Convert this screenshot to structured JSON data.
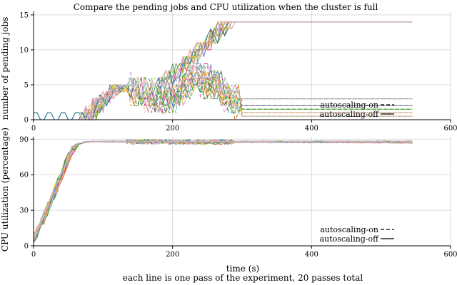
{
  "figure": {
    "title": "Compare the pending jobs and CPU utilization when the cluster is full",
    "xlabel": "time (s)",
    "caption": "each line is one pass of the experiment, 20 passes total"
  },
  "colors": {
    "palette": [
      "#1b9e77",
      "#d95f02",
      "#7570b3",
      "#e7298a",
      "#66a61e",
      "#e6ab02",
      "#a6761d",
      "#666666",
      "#66c2a5",
      "#fc8d62",
      "#8da0cb",
      "#e78ac3",
      "#a6d854",
      "#ffd92f",
      "#e5c494",
      "#b3b3b3",
      "#1f78b4",
      "#33a02c",
      "#fb9a99",
      "#cab2d6"
    ],
    "grid": "#d9d9d9",
    "axis": "#000000"
  },
  "chart_data": [
    {
      "type": "line",
      "ylabel": "number of pending jobs",
      "xlim": [
        0,
        600
      ],
      "ylim": [
        0,
        15.5
      ],
      "xticks": [
        0,
        200,
        400,
        600
      ],
      "yticks": [
        0,
        5,
        10,
        15
      ],
      "grid": true,
      "legend_position": "bottom-right",
      "legend": [
        {
          "label": "autoscaling-on",
          "style": "dashed"
        },
        {
          "label": "autoscaling-off",
          "style": "solid"
        }
      ],
      "autoscaling_off_profile": {
        "x": [
          0,
          75,
          100,
          130,
          185,
          240,
          280,
          300,
          545
        ],
        "y": [
          0,
          0,
          3,
          5,
          5,
          10,
          14,
          14,
          14
        ]
      },
      "autoscaling_on_profile": {
        "x": [
          0,
          75,
          100,
          130,
          150,
          200,
          230,
          260,
          300,
          545
        ],
        "y": [
          0,
          0,
          3,
          5,
          4,
          3,
          6,
          5,
          2,
          2
        ]
      },
      "autoscaling_on_final_levels": [
        3,
        2,
        1.5,
        1,
        0.5
      ]
    },
    {
      "type": "line",
      "ylabel": "CPU utilization (percentage)",
      "xlim": [
        0,
        600
      ],
      "ylim": [
        0,
        92
      ],
      "xticks": [
        0,
        200,
        400,
        600
      ],
      "yticks": [
        0,
        30,
        60,
        90
      ],
      "grid": true,
      "legend_position": "bottom-right",
      "legend": [
        {
          "label": "autoscaling-on",
          "style": "dashed"
        },
        {
          "label": "autoscaling-off",
          "style": "solid"
        }
      ],
      "autoscaling_off_profile": {
        "x": [
          0,
          5,
          10,
          20,
          30,
          40,
          50,
          60,
          70,
          80,
          545
        ],
        "y": [
          3,
          15,
          17,
          31,
          45,
          60,
          74,
          85,
          87,
          88,
          88
        ]
      },
      "autoscaling_on_profile": {
        "x": [
          0,
          5,
          10,
          20,
          30,
          40,
          50,
          60,
          70,
          80,
          545
        ],
        "y": [
          3,
          15,
          17,
          31,
          45,
          60,
          74,
          85,
          87,
          88,
          87
        ]
      }
    }
  ]
}
